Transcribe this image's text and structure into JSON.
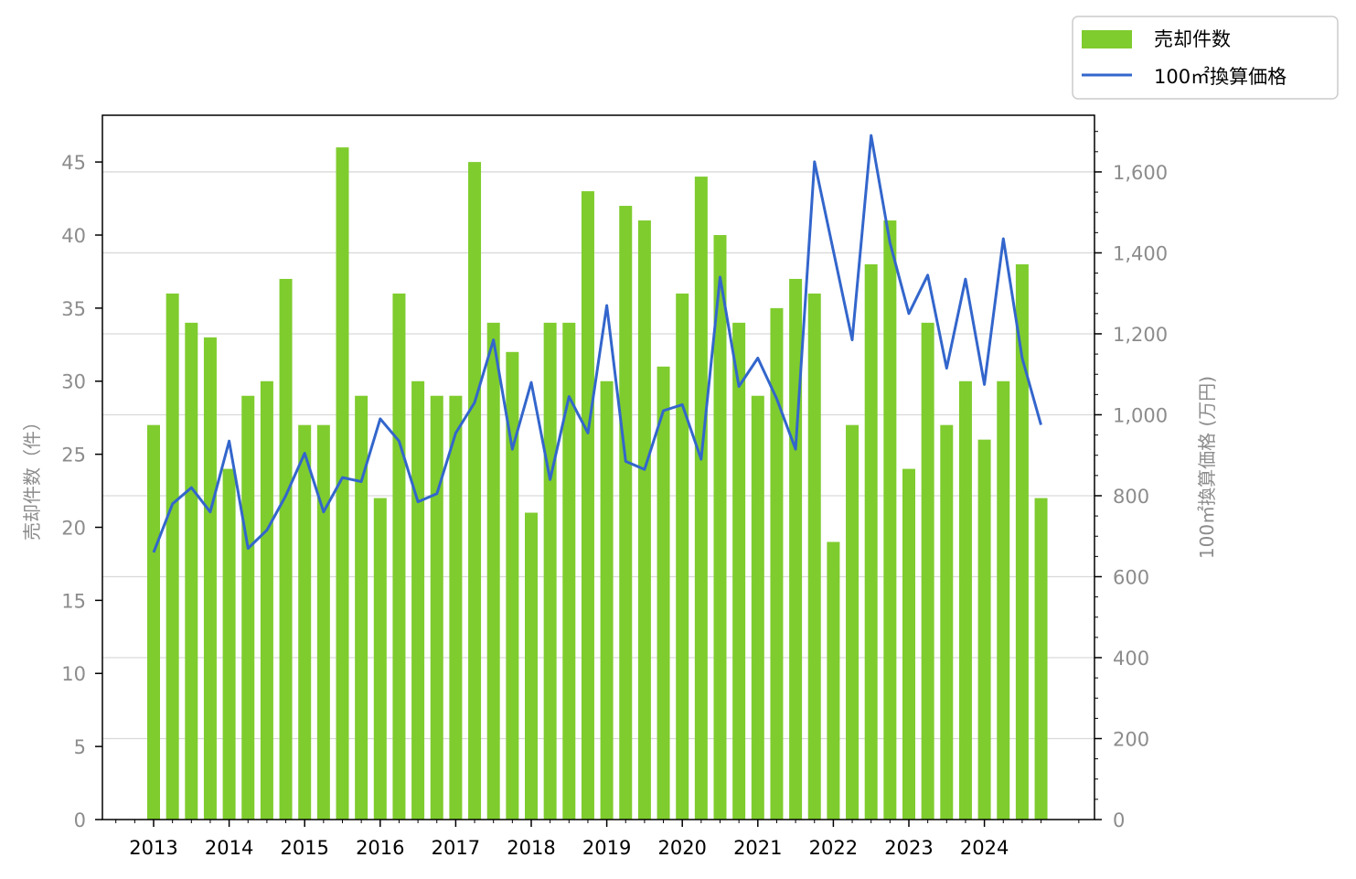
{
  "chart_data": {
    "type": "bar+line",
    "x_tick_labels": [
      "2013",
      "2014",
      "2015",
      "2016",
      "2017",
      "2018",
      "2019",
      "2020",
      "2021",
      "2022",
      "2023",
      "2024"
    ],
    "quarters_per_year": 4,
    "start_year": 2013,
    "colors": {
      "bar": "#7fcc2e",
      "line": "#3366cc",
      "grid": "#d9d9d9",
      "axis": "#000000"
    },
    "series": [
      {
        "name": "売却件数",
        "type": "bar",
        "axis": "left",
        "values": [
          27,
          36,
          34,
          33,
          24,
          29,
          30,
          37,
          27,
          27,
          46,
          29,
          22,
          36,
          30,
          29,
          29,
          45,
          34,
          32,
          21,
          34,
          34,
          43,
          30,
          42,
          41,
          31,
          36,
          44,
          40,
          34,
          29,
          35,
          37,
          36,
          19,
          27,
          38,
          41,
          24,
          34,
          27,
          30,
          26,
          30,
          38,
          22
        ]
      },
      {
        "name": "100㎡換算価格",
        "type": "line",
        "axis": "right",
        "values": [
          660,
          780,
          820,
          760,
          935,
          670,
          715,
          800,
          905,
          760,
          845,
          835,
          990,
          935,
          785,
          805,
          955,
          1030,
          1185,
          915,
          1080,
          840,
          1045,
          955,
          1270,
          885,
          865,
          1010,
          1025,
          890,
          1340,
          1070,
          1140,
          1040,
          915,
          1625,
          1405,
          1185,
          1690,
          1425,
          1250,
          1345,
          1115,
          1335,
          1075,
          1435,
          1140,
          975
        ]
      }
    ],
    "left_axis": {
      "label": "売却件数（件）",
      "ylim": [
        0,
        48.2
      ],
      "ticks": [
        0,
        5,
        10,
        15,
        20,
        25,
        30,
        35,
        40,
        45
      ]
    },
    "right_axis": {
      "label": "100㎡換算価格 (万円)",
      "ylim": [
        0,
        1740
      ],
      "ticks": [
        0,
        200,
        400,
        600,
        800,
        1000,
        1200,
        1400,
        1600
      ],
      "tick_labels": [
        "0",
        "200",
        "400",
        "600",
        "800",
        "1,000",
        "1,200",
        "1,400",
        "1,600"
      ]
    },
    "grid": "horizontal",
    "legend_position": "top-right"
  }
}
